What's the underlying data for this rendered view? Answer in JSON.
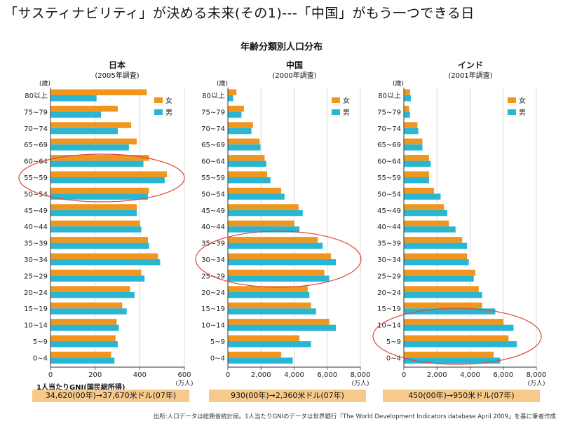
{
  "headline": "「サスティナビリティ」が決める未来(その1)---「中国」がもう一つできる日",
  "main_title": "年齢分類別人口分布",
  "unit_age": "(歳)",
  "unit_people": "(万人)",
  "legend": {
    "female": "女",
    "male": "男"
  },
  "colors": {
    "female": "#f0961e",
    "male": "#29b6d3",
    "ellipse": "#d9473a"
  },
  "gni_label": "1人当たりGNI(国民総所得)",
  "footnote": "出所:人口データは総務省統計局。1人当たりGNIのデータは世界銀行「The World Development Indicators database April 2009」を基に筆者作成",
  "chart_data": [
    {
      "type": "bar",
      "title": "日本",
      "subtitle": "(2005年調査)",
      "categories": [
        "80以上",
        "75~79",
        "70~74",
        "65~69",
        "60~64",
        "55~59",
        "50~54",
        "45~49",
        "40~44",
        "35~39",
        "30~34",
        "25~29",
        "20~24",
        "15~19",
        "10~14",
        "5~9",
        "0~4"
      ],
      "series": [
        {
          "name": "女",
          "values": [
            430,
            300,
            360,
            385,
            440,
            520,
            440,
            385,
            400,
            435,
            480,
            405,
            355,
            320,
            295,
            290,
            270
          ]
        },
        {
          "name": "男",
          "values": [
            205,
            225,
            300,
            350,
            415,
            510,
            435,
            385,
            405,
            440,
            490,
            420,
            375,
            340,
            305,
            300,
            285
          ]
        }
      ],
      "xlim": [
        0,
        600
      ],
      "xticks": [
        "0",
        "200",
        "400",
        "600"
      ],
      "gni": "34,620(00年)→37,670米ドル(07年)"
    },
    {
      "type": "bar",
      "title": "中国",
      "subtitle": "(2000年調査)",
      "categories": [
        "80以上",
        "75~79",
        "70~74",
        "65~69",
        "60~64",
        "55~59",
        "50~54",
        "45~49",
        "40~44",
        "35~39",
        "30~34",
        "25~29",
        "20~24",
        "15~19",
        "10~14",
        "5~9",
        "0~4"
      ],
      "series": [
        {
          "name": "女",
          "values": [
            500,
            950,
            1500,
            1900,
            2200,
            2350,
            3200,
            4250,
            4000,
            5400,
            6200,
            5800,
            4800,
            5000,
            6100,
            4300,
            3200
          ]
        },
        {
          "name": "男",
          "values": [
            300,
            800,
            1400,
            1950,
            2300,
            2550,
            3400,
            4500,
            4300,
            5700,
            6500,
            6100,
            4900,
            5300,
            6500,
            5000,
            3900
          ]
        }
      ],
      "xlim": [
        0,
        8000
      ],
      "xticks": [
        "0",
        "2,000",
        "4,000",
        "6,000",
        "8,000"
      ],
      "gni": "930(00年)→2,360米ドル(07年)"
    },
    {
      "type": "bar",
      "title": "インド",
      "subtitle": "(2001年調査)",
      "categories": [
        "80以上",
        "75~79",
        "70~74",
        "65~69",
        "60~64",
        "55~59",
        "50~54",
        "45~49",
        "40~44",
        "35~39",
        "30~34",
        "25~29",
        "20~24",
        "15~19",
        "10~14",
        "5~9",
        "0~4"
      ],
      "series": [
        {
          "name": "女",
          "values": [
            350,
            300,
            800,
            1100,
            1500,
            1500,
            1800,
            2400,
            2700,
            3500,
            3800,
            4300,
            4500,
            4700,
            6000,
            6300,
            5400
          ]
        },
        {
          "name": "男",
          "values": [
            400,
            350,
            850,
            1100,
            1600,
            1500,
            2200,
            2600,
            3100,
            3800,
            3900,
            4200,
            4700,
            5500,
            6600,
            6800,
            5800
          ]
        }
      ],
      "xlim": [
        0,
        8000
      ],
      "xticks": [
        "0",
        "2,000",
        "4,000",
        "6,000",
        "8,000"
      ],
      "gni": "450(00年)→950米ドル(07年)"
    }
  ]
}
